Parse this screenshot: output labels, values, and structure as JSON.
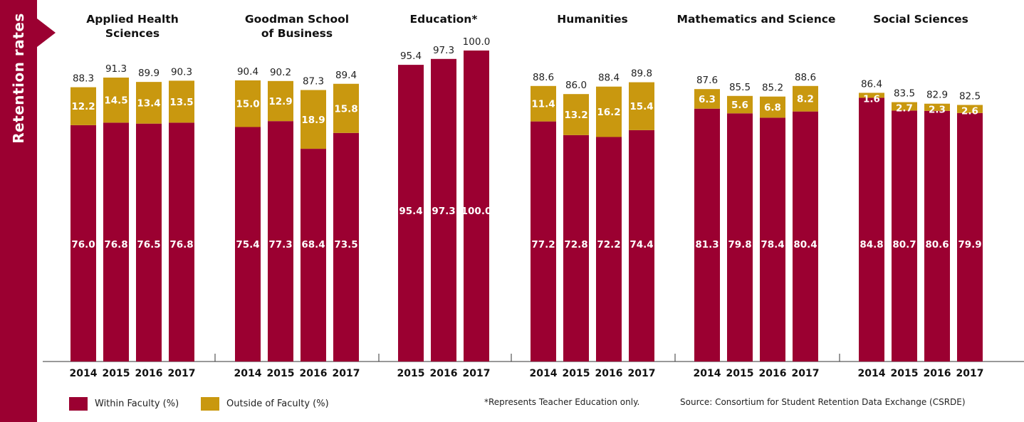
{
  "sidebar": {
    "label": "Retention rates"
  },
  "colors": {
    "within": "#9b0031",
    "outside": "#c9980f",
    "sidebar": "#9b0031"
  },
  "legend": {
    "within": "Within Faculty (%)",
    "outside": "Outside of Faculty (%)"
  },
  "footnote": "*Represents Teacher Education only.",
  "source": "Source: Consortium for Student Retention Data Exchange (CSRDE)",
  "chart_data": {
    "type": "bar",
    "stacked": true,
    "series_names": [
      "Within Faculty (%)",
      "Outside of Faculty (%)"
    ],
    "ylim": [
      0,
      100
    ],
    "groups": [
      {
        "title": [
          "Applied Health",
          "Sciences"
        ],
        "bars": [
          {
            "year": "2014",
            "total": "88.3",
            "within": 76.0,
            "within_label": "76.0",
            "outside": 12.2,
            "outside_label": "12.2"
          },
          {
            "year": "2015",
            "total": "91.3",
            "within": 76.8,
            "within_label": "76.8",
            "outside": 14.5,
            "outside_label": "14.5"
          },
          {
            "year": "2016",
            "total": "89.9",
            "within": 76.5,
            "within_label": "76.5",
            "outside": 13.4,
            "outside_label": "13.4"
          },
          {
            "year": "2017",
            "total": "90.3",
            "within": 76.8,
            "within_label": "76.8",
            "outside": 13.5,
            "outside_label": "13.5"
          }
        ]
      },
      {
        "title": [
          "Goodman School",
          "of Business"
        ],
        "bars": [
          {
            "year": "2014",
            "total": "90.4",
            "within": 75.4,
            "within_label": "75.4",
            "outside": 15.0,
            "outside_label": "15.0"
          },
          {
            "year": "2015",
            "total": "90.2",
            "within": 77.3,
            "within_label": "77.3",
            "outside": 12.9,
            "outside_label": "12.9"
          },
          {
            "year": "2016",
            "total": "87.3",
            "within": 68.4,
            "within_label": "68.4",
            "outside": 18.9,
            "outside_label": "18.9"
          },
          {
            "year": "2017",
            "total": "89.4",
            "within": 73.5,
            "within_label": "73.5",
            "outside": 15.8,
            "outside_label": "15.8"
          }
        ]
      },
      {
        "title": [
          "Education*"
        ],
        "bars": [
          {
            "year": "2015",
            "total": "95.4",
            "within": 95.4,
            "within_label": "95.4",
            "outside": 0,
            "outside_label": ""
          },
          {
            "year": "2016",
            "total": "97.3",
            "within": 97.3,
            "within_label": "97.3",
            "outside": 0,
            "outside_label": ""
          },
          {
            "year": "2017",
            "total": "100.0",
            "within": 100.0,
            "within_label": "100.0",
            "outside": 0,
            "outside_label": ""
          }
        ]
      },
      {
        "title": [
          "Humanities"
        ],
        "bars": [
          {
            "year": "2014",
            "total": "88.6",
            "within": 77.2,
            "within_label": "77.2",
            "outside": 11.4,
            "outside_label": "11.4"
          },
          {
            "year": "2015",
            "total": "86.0",
            "within": 72.8,
            "within_label": "72.8",
            "outside": 13.2,
            "outside_label": "13.2"
          },
          {
            "year": "2016",
            "total": "88.4",
            "within": 72.2,
            "within_label": "72.2",
            "outside": 16.2,
            "outside_label": "16.2"
          },
          {
            "year": "2017",
            "total": "89.8",
            "within": 74.4,
            "within_label": "74.4",
            "outside": 15.4,
            "outside_label": "15.4"
          }
        ]
      },
      {
        "title": [
          "Mathematics and Science"
        ],
        "bars": [
          {
            "year": "2014",
            "total": "87.6",
            "within": 81.3,
            "within_label": "81.3",
            "outside": 6.3,
            "outside_label": "6.3"
          },
          {
            "year": "2015",
            "total": "85.5",
            "within": 79.8,
            "within_label": "79.8",
            "outside": 5.6,
            "outside_label": "5.6"
          },
          {
            "year": "2016",
            "total": "85.2",
            "within": 78.4,
            "within_label": "78.4",
            "outside": 6.8,
            "outside_label": "6.8"
          },
          {
            "year": "2017",
            "total": "88.6",
            "within": 80.4,
            "within_label": "80.4",
            "outside": 8.2,
            "outside_label": "8.2"
          }
        ]
      },
      {
        "title": [
          "Social Sciences"
        ],
        "bars": [
          {
            "year": "2014",
            "total": "86.4",
            "within": 84.8,
            "within_label": "84.8",
            "outside": 1.6,
            "outside_label": "1.6"
          },
          {
            "year": "2015",
            "total": "83.5",
            "within": 80.7,
            "within_label": "80.7",
            "outside": 2.7,
            "outside_label": "2.7"
          },
          {
            "year": "2016",
            "total": "82.9",
            "within": 80.6,
            "within_label": "80.6",
            "outside": 2.3,
            "outside_label": "2.3"
          },
          {
            "year": "2017",
            "total": "82.5",
            "within": 79.9,
            "within_label": "79.9",
            "outside": 2.6,
            "outside_label": "2.6"
          }
        ]
      }
    ]
  }
}
